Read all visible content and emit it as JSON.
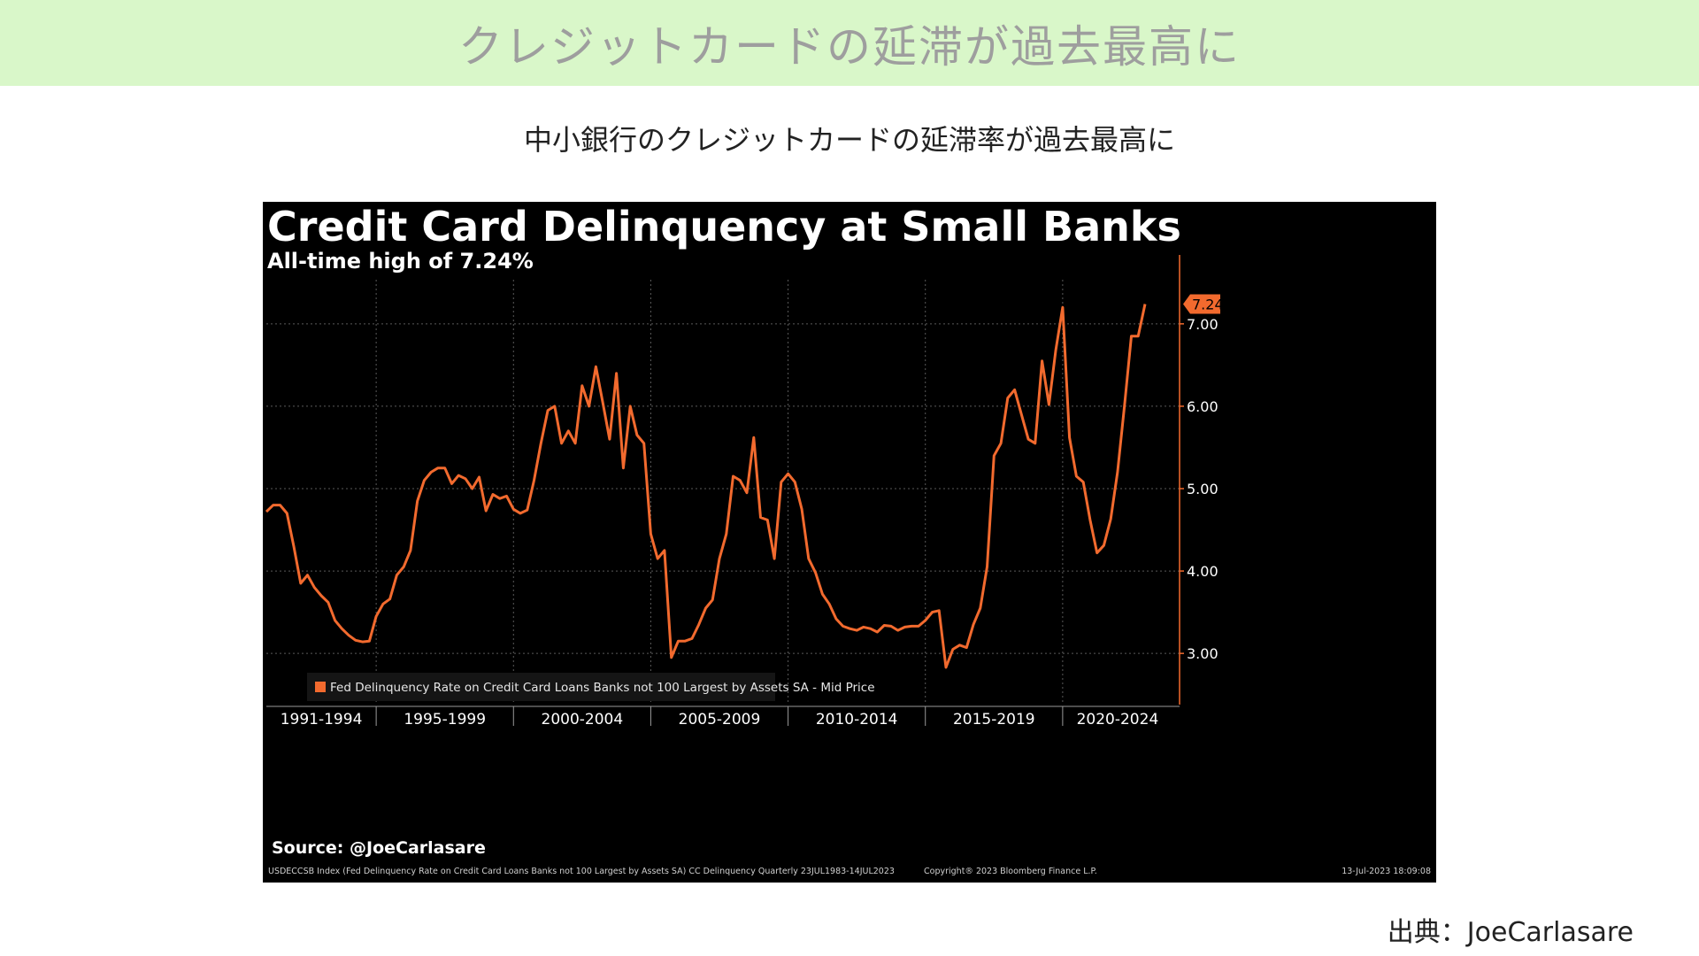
{
  "banner": {
    "title": "クレジットカードの延滞が過去最高に"
  },
  "subtitle": "中小銀行のクレジットカードの延滞率が過去最高に",
  "footer_credit": "出典：JoeCarlasare",
  "colors": {
    "banner_bg": "#d9f7c9",
    "line": "#f26a2e",
    "chart_bg": "#000000",
    "last_value_tag": "#f26a2e"
  },
  "chart_data": {
    "type": "line",
    "title": "Credit Card Delinquency at Small Banks",
    "subtitle": "All-time high of 7.24%",
    "legend": "Fed Delinquency Rate on Credit Card Loans Banks not 100 Largest by Assets SA - Mid Price",
    "legend_position": "bottom-left",
    "source": "Source: @JoeCarlasare",
    "index_note": "USDECCSB Index (Fed Delinquency Rate on Credit Card Loans Banks not 100 Largest by Assets SA) CC Delinquency  Quarterly 23JUL1983-14JUL2023",
    "copyright": "Copyright® 2023 Bloomberg Finance L.P.",
    "timestamp": "13-Jul-2023 18:09:08",
    "last_value_label": "7.24",
    "x_labels": [
      "1991-1994",
      "1995-1999",
      "2000-2004",
      "2005-2009",
      "2010-2014",
      "2015-2019",
      "2020-2024"
    ],
    "y_ticks": [
      "7.00",
      "6.00",
      "5.00",
      "4.00",
      "3.00"
    ],
    "ylim": [
      2.4,
      7.6
    ],
    "xlim": [
      1991.0,
      2024.0
    ],
    "grid": true,
    "x": [
      1991.0,
      1991.25,
      1991.5,
      1991.75,
      1992.0,
      1992.25,
      1992.5,
      1992.75,
      1993.0,
      1993.25,
      1993.5,
      1993.75,
      1994.0,
      1994.25,
      1994.5,
      1994.75,
      1995.0,
      1995.25,
      1995.5,
      1995.75,
      1996.0,
      1996.25,
      1996.5,
      1996.75,
      1997.0,
      1997.25,
      1997.5,
      1997.75,
      1998.0,
      1998.25,
      1998.5,
      1998.75,
      1999.0,
      1999.25,
      1999.5,
      1999.75,
      2000.0,
      2000.25,
      2000.5,
      2000.75,
      2001.0,
      2001.25,
      2001.5,
      2001.75,
      2002.0,
      2002.25,
      2002.5,
      2002.75,
      2003.0,
      2003.25,
      2003.5,
      2003.75,
      2004.0,
      2004.25,
      2004.5,
      2004.75,
      2005.0,
      2005.25,
      2005.5,
      2005.75,
      2006.0,
      2006.25,
      2006.5,
      2006.75,
      2007.0,
      2007.25,
      2007.5,
      2007.75,
      2008.0,
      2008.25,
      2008.5,
      2008.75,
      2009.0,
      2009.25,
      2009.5,
      2009.75,
      2010.0,
      2010.25,
      2010.5,
      2010.75,
      2011.0,
      2011.25,
      2011.5,
      2011.75,
      2012.0,
      2012.25,
      2012.5,
      2012.75,
      2013.0,
      2013.25,
      2013.5,
      2013.75,
      2014.0,
      2014.25,
      2014.5,
      2014.75,
      2015.0,
      2015.25,
      2015.5,
      2015.75,
      2016.0,
      2016.25,
      2016.5,
      2016.75,
      2017.0,
      2017.25,
      2017.5,
      2017.75,
      2018.0,
      2018.25,
      2018.5,
      2018.75,
      2019.0,
      2019.25,
      2019.5,
      2019.75,
      2020.0,
      2020.25,
      2020.5,
      2020.75,
      2021.0,
      2021.25,
      2021.5,
      2021.75,
      2022.0,
      2022.25,
      2022.5,
      2022.75,
      2023.0
    ],
    "y": [
      4.72,
      4.8,
      4.8,
      4.7,
      4.3,
      3.85,
      3.95,
      3.8,
      3.7,
      3.62,
      3.4,
      3.3,
      3.22,
      3.16,
      3.14,
      3.15,
      3.45,
      3.6,
      3.66,
      3.95,
      4.05,
      4.25,
      4.85,
      5.1,
      5.2,
      5.25,
      5.25,
      5.06,
      5.16,
      5.12,
      5.0,
      5.14,
      4.73,
      4.93,
      4.88,
      4.91,
      4.75,
      4.7,
      4.74,
      5.1,
      5.55,
      5.95,
      6.0,
      5.55,
      5.7,
      5.55,
      6.25,
      6.0,
      6.48,
      6.05,
      5.6,
      6.4,
      5.25,
      6.0,
      5.65,
      5.55,
      4.45,
      4.15,
      4.25,
      2.95,
      3.15,
      3.15,
      3.18,
      3.35,
      3.55,
      3.65,
      4.15,
      4.45,
      5.15,
      5.1,
      4.95,
      5.62,
      4.65,
      4.62,
      4.15,
      5.08,
      5.18,
      5.08,
      4.75,
      4.15,
      3.98,
      3.72,
      3.6,
      3.42,
      3.33,
      3.3,
      3.28,
      3.32,
      3.3,
      3.26,
      3.34,
      3.33,
      3.28,
      3.32,
      3.33,
      3.33,
      3.4,
      3.5,
      3.52,
      2.83,
      3.05,
      3.1,
      3.07,
      3.35,
      3.55,
      4.05,
      5.4,
      5.55,
      6.1,
      6.2,
      5.9,
      5.6,
      5.55,
      6.55,
      6.02,
      6.68,
      7.2,
      5.62,
      5.15,
      5.08,
      4.62,
      4.22,
      4.31,
      4.63,
      5.2,
      6.0,
      6.85,
      6.85,
      7.24
    ]
  }
}
